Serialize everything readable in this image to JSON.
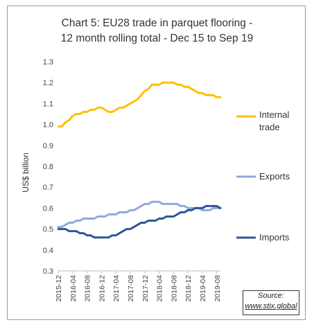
{
  "chart_data": {
    "type": "line",
    "title_lines": [
      "Chart 5: EU28 trade in parquet flooring -",
      "12 month rolling total - Dec 15 to Sep 19"
    ],
    "ylabel": "US$ billion",
    "xlabel": "",
    "ylim": [
      0.3,
      1.3
    ],
    "yticks": [
      "0.3",
      "0.4",
      "0.5",
      "0.6",
      "0.7",
      "0.8",
      "0.9",
      "1.0",
      "1.1",
      "1.2",
      "1.3"
    ],
    "x_tick_labels": [
      "2015-12",
      "2016-04",
      "2016-08",
      "2016-12",
      "2017-04",
      "2017-08",
      "2017-12",
      "2018-04",
      "2018-08",
      "2018-12",
      "2019-04",
      "2019-08"
    ],
    "grid": false,
    "legend_position": "right",
    "x": [
      "2015-12",
      "2016-01",
      "2016-02",
      "2016-03",
      "2016-04",
      "2016-05",
      "2016-06",
      "2016-07",
      "2016-08",
      "2016-09",
      "2016-10",
      "2016-11",
      "2016-12",
      "2017-01",
      "2017-02",
      "2017-03",
      "2017-04",
      "2017-05",
      "2017-06",
      "2017-07",
      "2017-08",
      "2017-09",
      "2017-10",
      "2017-11",
      "2017-12",
      "2018-01",
      "2018-02",
      "2018-03",
      "2018-04",
      "2018-05",
      "2018-06",
      "2018-07",
      "2018-08",
      "2018-09",
      "2018-10",
      "2018-11",
      "2018-12",
      "2019-01",
      "2019-02",
      "2019-03",
      "2019-04",
      "2019-05",
      "2019-06",
      "2019-07",
      "2019-08",
      "2019-09"
    ],
    "series": [
      {
        "name": "Internal trade",
        "legend_lines": [
          "Internal",
          "trade"
        ],
        "color": "#ffc000",
        "values": [
          0.99,
          0.99,
          1.01,
          1.02,
          1.04,
          1.05,
          1.05,
          1.06,
          1.06,
          1.07,
          1.07,
          1.08,
          1.08,
          1.07,
          1.06,
          1.06,
          1.07,
          1.08,
          1.08,
          1.09,
          1.1,
          1.11,
          1.12,
          1.14,
          1.16,
          1.17,
          1.19,
          1.19,
          1.19,
          1.2,
          1.2,
          1.2,
          1.2,
          1.19,
          1.19,
          1.18,
          1.18,
          1.17,
          1.16,
          1.15,
          1.15,
          1.14,
          1.14,
          1.14,
          1.13,
          1.13
        ]
      },
      {
        "name": "Exports",
        "legend_lines": [
          "Exports"
        ],
        "color": "#8eaadb",
        "values": [
          0.51,
          0.51,
          0.52,
          0.53,
          0.53,
          0.54,
          0.54,
          0.55,
          0.55,
          0.55,
          0.55,
          0.56,
          0.56,
          0.56,
          0.57,
          0.57,
          0.57,
          0.58,
          0.58,
          0.58,
          0.59,
          0.59,
          0.6,
          0.61,
          0.62,
          0.62,
          0.63,
          0.63,
          0.63,
          0.62,
          0.62,
          0.62,
          0.62,
          0.62,
          0.61,
          0.61,
          0.6,
          0.6,
          0.6,
          0.6,
          0.59,
          0.59,
          0.59,
          0.6,
          0.6,
          0.6
        ]
      },
      {
        "name": "Imports",
        "legend_lines": [
          "Imports"
        ],
        "color": "#2f5597",
        "values": [
          0.5,
          0.5,
          0.5,
          0.49,
          0.49,
          0.49,
          0.48,
          0.48,
          0.47,
          0.47,
          0.46,
          0.46,
          0.46,
          0.46,
          0.46,
          0.47,
          0.47,
          0.48,
          0.49,
          0.5,
          0.5,
          0.51,
          0.52,
          0.53,
          0.53,
          0.54,
          0.54,
          0.54,
          0.55,
          0.55,
          0.56,
          0.56,
          0.56,
          0.57,
          0.58,
          0.58,
          0.59,
          0.59,
          0.6,
          0.6,
          0.6,
          0.61,
          0.61,
          0.61,
          0.61,
          0.6
        ]
      }
    ]
  },
  "source": {
    "label": "Source:",
    "url": "www.stix.global"
  }
}
